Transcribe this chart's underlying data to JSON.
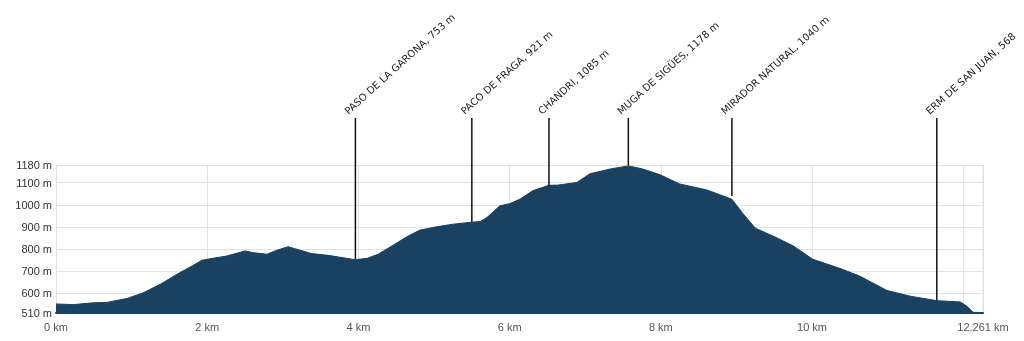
{
  "chart_data": {
    "type": "area",
    "color": "#1a4160",
    "marker": "none",
    "grid": true,
    "x": [
      0,
      0.23,
      0.49,
      0.67,
      0.94,
      1.15,
      1.38,
      1.6,
      1.8,
      1.93,
      2.08,
      2.26,
      2.5,
      2.61,
      2.79,
      2.92,
      3.07,
      3.23,
      3.38,
      3.6,
      3.8,
      3.96,
      4.12,
      4.26,
      4.46,
      4.64,
      4.81,
      5.03,
      5.25,
      5.5,
      5.61,
      5.7,
      5.87,
      6.0,
      6.14,
      6.31,
      6.52,
      6.64,
      6.89,
      7.06,
      7.33,
      7.57,
      7.76,
      7.99,
      8.25,
      8.61,
      8.94,
      9.09,
      9.25,
      9.48,
      9.75,
      10.01,
      10.37,
      10.63,
      10.99,
      11.3,
      11.65,
      11.96,
      12.05,
      12.13,
      12.261
    ],
    "values": [
      551,
      548,
      556,
      558,
      576,
      601,
      640,
      685,
      723,
      749,
      758,
      768,
      791,
      783,
      776,
      794,
      810,
      794,
      779,
      771,
      760,
      751,
      758,
      776,
      817,
      855,
      885,
      900,
      912,
      921,
      924,
      942,
      995,
      1005,
      1026,
      1064,
      1088,
      1089,
      1101,
      1140,
      1162,
      1176,
      1162,
      1136,
      1094,
      1067,
      1025,
      958,
      894,
      859,
      814,
      753,
      712,
      677,
      612,
      586,
      566,
      560,
      540,
      513,
      512
    ],
    "xlim": [
      0,
      12.261
    ],
    "xticks": [
      {
        "value": 0,
        "label": "0 km"
      },
      {
        "value": 2,
        "label": "2 km"
      },
      {
        "value": 4,
        "label": "4 km"
      },
      {
        "value": 6,
        "label": "6 km"
      },
      {
        "value": 8,
        "label": "8 km"
      },
      {
        "value": 10,
        "label": "10 km"
      },
      {
        "value": 12,
        "label": null
      },
      {
        "value": 12.261,
        "label": "12.261 km"
      }
    ],
    "ylim": [
      510,
      1180
    ],
    "yticks": [
      {
        "value": 510,
        "label": "510 m"
      },
      {
        "value": 600,
        "label": "600 m"
      },
      {
        "value": 700,
        "label": "700 m"
      },
      {
        "value": 800,
        "label": "800 m"
      },
      {
        "value": 900,
        "label": "900 m"
      },
      {
        "value": 1000,
        "label": "1000 m"
      },
      {
        "value": 1100,
        "label": "1100 m"
      },
      {
        "value": 1180,
        "label": "1180 m"
      }
    ],
    "annotations": [
      {
        "text": "PASO DE LA GARONA, 753 m",
        "x": 3.96,
        "y": 753
      },
      {
        "text": "PACO DE FRAGA, 921 m",
        "x": 5.5,
        "y": 921
      },
      {
        "text": "CHANDRI, 1085 m",
        "x": 6.52,
        "y": 1085
      },
      {
        "text": "MUGA DE SIGÜES, 1178 m",
        "x": 7.57,
        "y": 1178
      },
      {
        "text": "MIRADOR NATURAL, 1040 m",
        "x": 8.94,
        "y": 1040
      },
      {
        "text": "ERM DE SAN JUAN, 568",
        "x": 11.65,
        "y": 568
      }
    ]
  }
}
